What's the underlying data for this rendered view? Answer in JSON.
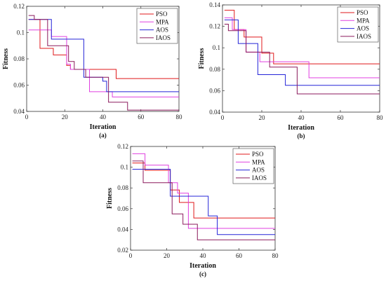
{
  "chart_data": [
    {
      "type": "line",
      "panel_label": "(a)",
      "xlabel": "Iteration",
      "ylabel": "Fitness",
      "xlim": [
        0,
        80
      ],
      "ylim": [
        0.04,
        0.12
      ],
      "xticks": [
        "0",
        "20",
        "40",
        "60",
        "80"
      ],
      "yticks": [
        "0.04",
        "0.06",
        "0.08",
        "0.1",
        "0.12"
      ],
      "legend_position": "top-right",
      "series": [
        {
          "name": "PSO",
          "color": "#e0191b",
          "x": [
            1,
            7,
            14,
            21,
            23,
            30,
            47,
            80
          ],
          "y": [
            0.11,
            0.088,
            0.083,
            0.075,
            0.072,
            0.072,
            0.065,
            0.065
          ]
        },
        {
          "name": "MPA",
          "color": "#e040e0",
          "x": [
            1,
            13,
            21,
            23,
            33,
            45,
            80
          ],
          "y": [
            0.102,
            0.097,
            0.076,
            0.072,
            0.055,
            0.051,
            0.051
          ]
        },
        {
          "name": "AOS",
          "color": "#2525d8",
          "x": [
            1,
            13,
            30,
            40,
            42,
            80
          ],
          "y": [
            0.11,
            0.095,
            0.066,
            0.063,
            0.055,
            0.055
          ]
        },
        {
          "name": "IAOS",
          "color": "#8b1a5c",
          "x": [
            1,
            4,
            11,
            22,
            25,
            31,
            43,
            53,
            80
          ],
          "y": [
            0.113,
            0.11,
            0.09,
            0.078,
            0.072,
            0.066,
            0.047,
            0.041,
            0.041
          ]
        }
      ]
    },
    {
      "type": "line",
      "panel_label": "(b)",
      "xlabel": "Iteration",
      "ylabel": "Fitness",
      "xlim": [
        0,
        80
      ],
      "ylim": [
        0.04,
        0.14
      ],
      "xticks": [
        "0",
        "20",
        "40",
        "60",
        "80"
      ],
      "yticks": [
        "0.04",
        "0.06",
        "0.08",
        "0.1",
        "0.12",
        "0.14"
      ],
      "legend_position": "top-right",
      "series": [
        {
          "name": "PSO",
          "color": "#e0191b",
          "x": [
            1,
            6,
            11,
            20,
            26,
            80
          ],
          "y": [
            0.135,
            0.117,
            0.11,
            0.095,
            0.085,
            0.085
          ]
        },
        {
          "name": "MPA",
          "color": "#e040e0",
          "x": [
            1,
            5,
            12,
            19,
            25,
            44,
            80
          ],
          "y": [
            0.128,
            0.117,
            0.096,
            0.087,
            0.087,
            0.072,
            0.072
          ]
        },
        {
          "name": "AOS",
          "color": "#2525d8",
          "x": [
            1,
            8,
            18,
            32,
            80
          ],
          "y": [
            0.126,
            0.104,
            0.075,
            0.065,
            0.065
          ]
        },
        {
          "name": "IAOS",
          "color": "#8b1a5c",
          "x": [
            1,
            3,
            12,
            24,
            38,
            80
          ],
          "y": [
            0.122,
            0.116,
            0.096,
            0.082,
            0.057,
            0.057
          ]
        }
      ]
    },
    {
      "type": "line",
      "panel_label": "(c)",
      "xlabel": "Iteration",
      "ylabel": "Fitness",
      "xlim": [
        0,
        80
      ],
      "ylim": [
        0.02,
        0.12
      ],
      "xticks": [
        "0",
        "20",
        "40",
        "60",
        "80"
      ],
      "yticks": [
        "0.02",
        "0.04",
        "0.06",
        "0.08",
        "0.1",
        "0.12"
      ],
      "legend_position": "top-right",
      "series": [
        {
          "name": "PSO",
          "color": "#e0191b",
          "x": [
            1,
            8,
            22,
            27,
            35,
            80
          ],
          "y": [
            0.104,
            0.097,
            0.078,
            0.066,
            0.051,
            0.051
          ]
        },
        {
          "name": "MPA",
          "color": "#e040e0",
          "x": [
            1,
            8,
            21,
            26,
            32,
            80
          ],
          "y": [
            0.113,
            0.102,
            0.085,
            0.075,
            0.041,
            0.041
          ]
        },
        {
          "name": "AOS",
          "color": "#2525d8",
          "x": [
            1,
            20,
            22,
            43,
            48,
            80
          ],
          "y": [
            0.098,
            0.098,
            0.072,
            0.053,
            0.035,
            0.035
          ]
        },
        {
          "name": "IAOS",
          "color": "#8b1a5c",
          "x": [
            1,
            7,
            23,
            29,
            37,
            80
          ],
          "y": [
            0.106,
            0.085,
            0.055,
            0.045,
            0.03,
            0.03
          ]
        }
      ]
    }
  ]
}
